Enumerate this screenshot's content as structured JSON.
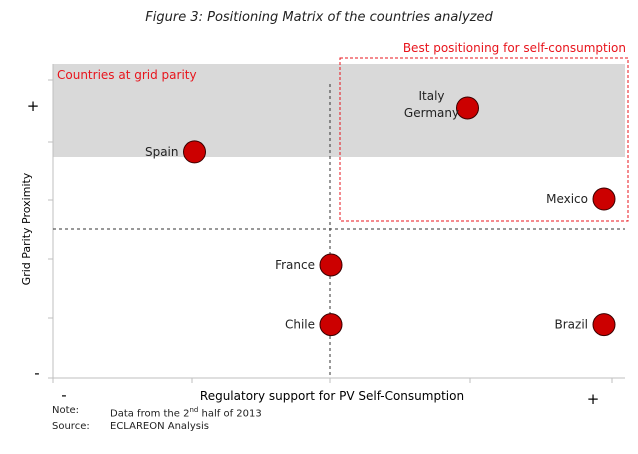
{
  "title": "Figure 3: Positioning Matrix of the countries analyzed",
  "chart_data": {
    "type": "scatter",
    "title": "Figure 3: Positioning Matrix of the countries analyzed",
    "xlabel": "Regulatory support for PV Self-Consumption",
    "ylabel": "Grid Parity Proximity",
    "x_min_label": "-",
    "x_max_label": "+",
    "y_min_label": "-",
    "y_max_label": "+",
    "xlim": [
      0,
      10
    ],
    "ylim": [
      0,
      10
    ],
    "points": [
      {
        "label": "Italy\nGermany",
        "line1": "Italy",
        "line2": "Germany",
        "x": 7.5,
        "y": 8.6
      },
      {
        "label": "Spain",
        "x": 2.5,
        "y": 7.2
      },
      {
        "label": "Mexico",
        "x": 10.0,
        "y": 5.7
      },
      {
        "label": "France",
        "x": 5.0,
        "y": 3.6
      },
      {
        "label": "Chile",
        "x": 5.0,
        "y": 1.7
      },
      {
        "label": "Brazil",
        "x": 10.0,
        "y": 1.7
      }
    ],
    "regions": [
      {
        "label": "Countries at grid parity"
      },
      {
        "label": "Best positioning for self-consumption"
      }
    ],
    "point_color": "#cc0000",
    "highlight_color": "#e8141c",
    "band_color": "#d9d9d9"
  },
  "note": {
    "note_key": "Note:",
    "note_text_pre": "Data from the 2",
    "note_sup": "nd",
    "note_text_post": " half of 2013",
    "source_key": "Source:",
    "source_text": "ECLAREON Analysis"
  }
}
